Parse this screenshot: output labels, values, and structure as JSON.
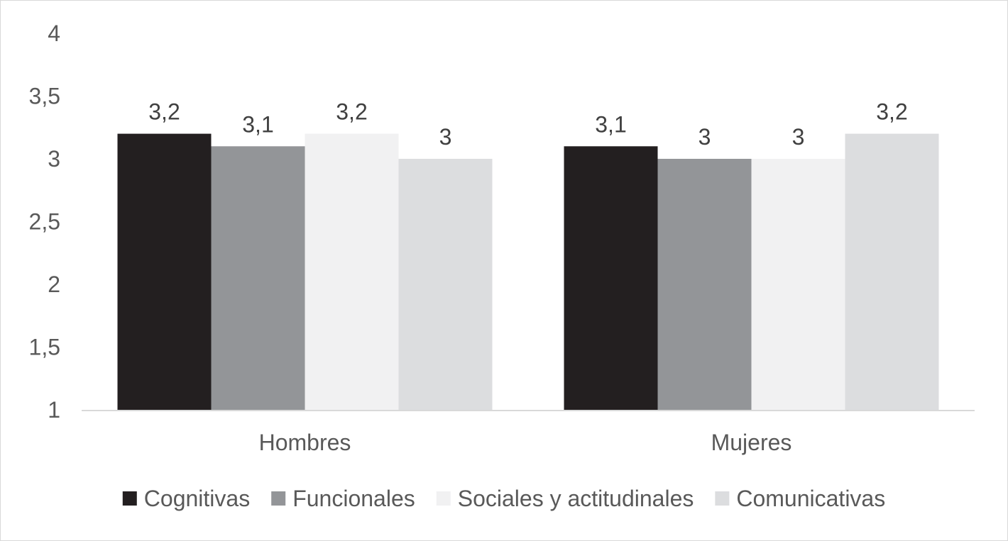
{
  "chart_data": {
    "type": "bar",
    "categories": [
      "Hombres",
      "Mujeres"
    ],
    "series": [
      {
        "name": "Cognitivas",
        "values": [
          3.2,
          3.1
        ],
        "labels": [
          "3,2",
          "3,1"
        ],
        "color": "#231f20"
      },
      {
        "name": "Funcionales",
        "values": [
          3.1,
          3.0
        ],
        "labels": [
          "3,1",
          "3"
        ],
        "color": "#939598"
      },
      {
        "name": "Sociales y actitudinales",
        "values": [
          3.2,
          3.0
        ],
        "labels": [
          "3,2",
          "3"
        ],
        "color": "#f1f1f2"
      },
      {
        "name": "Comunicativas",
        "values": [
          3.0,
          3.2
        ],
        "labels": [
          "3",
          "3,2"
        ],
        "color": "#dcdddf"
      }
    ],
    "y_ticks": [
      1,
      1.5,
      2,
      2.5,
      3,
      3.5,
      4
    ],
    "y_tick_labels": [
      "1",
      "1,5",
      "2",
      "2,5",
      "3",
      "3,5",
      "4"
    ],
    "ylim": [
      1,
      4
    ],
    "title": "",
    "xlabel": "",
    "ylabel": "",
    "grid": false,
    "legend_position": "bottom"
  }
}
